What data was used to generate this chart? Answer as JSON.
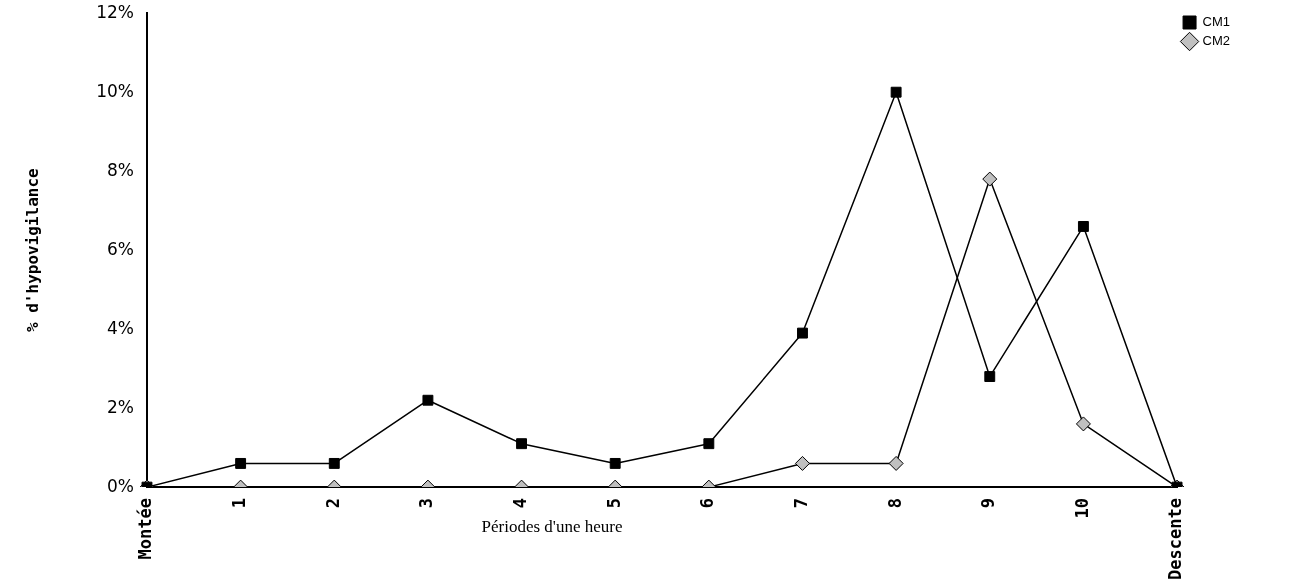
{
  "chart_data": {
    "type": "line",
    "xlabel": "Périodes d'une heure",
    "ylabel": "% d'hypovigilance",
    "categories": [
      "Montée",
      "1",
      "2",
      "3",
      "4",
      "5",
      "6",
      "7",
      "8",
      "9",
      "10",
      "Descente"
    ],
    "series": [
      {
        "name": "CM1",
        "color": "#000000",
        "marker": "square",
        "values": [
          0,
          0.6,
          0.6,
          2.2,
          1.1,
          0.6,
          1.1,
          3.9,
          10.0,
          2.8,
          6.6,
          0
        ]
      },
      {
        "name": "CM2",
        "color": "#c0c0c0",
        "marker": "diamond",
        "values": [
          0,
          0,
          0,
          0,
          0,
          0,
          0,
          0.6,
          0.6,
          7.8,
          1.6,
          0
        ]
      }
    ],
    "ylim": [
      0,
      12
    ],
    "yticks": [
      {
        "value": 0,
        "label": "0%"
      },
      {
        "value": 2,
        "label": "2%"
      },
      {
        "value": 4,
        "label": "4%"
      },
      {
        "value": 6,
        "label": "6%"
      },
      {
        "value": 8,
        "label": "8%"
      },
      {
        "value": 10,
        "label": "10%"
      },
      {
        "value": 12,
        "label": "12%"
      }
    ],
    "grid": false,
    "legend": "top right",
    "line_style": "solid"
  }
}
